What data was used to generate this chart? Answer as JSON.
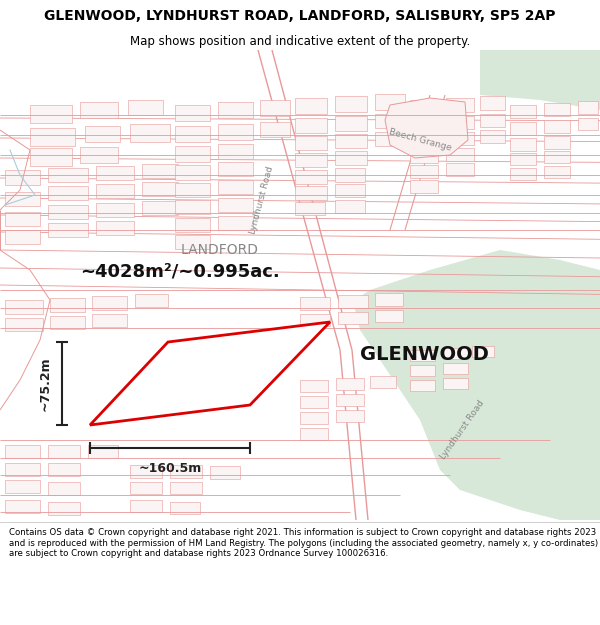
{
  "title": "GLENWOOD, LYNDHURST ROAD, LANDFORD, SALISBURY, SP5 2AP",
  "subtitle": "Map shows position and indicative extent of the property.",
  "footer": "Contains OS data © Crown copyright and database right 2021. This information is subject to Crown copyright and database rights 2023 and is reproduced with the permission of HM Land Registry. The polygons (including the associated geometry, namely x, y co-ordinates) are subject to Crown copyright and database rights 2023 Ordnance Survey 100026316.",
  "property_label": "GLENWOOD",
  "area_label": "~4028m²/~0.995ac.",
  "width_label": "~160.5m",
  "height_label": "~75.2m",
  "landford_label": "LANDFORD",
  "lyndhurst_road_label": "Lyndhurst Road",
  "beech_grange_label": "Beech Grange",
  "map_bg": "#ffffff",
  "road_color": "#f5c0c0",
  "highlight_color": "#dd0000",
  "green_area_color": "#d8e8d8",
  "line_color": "#e89898",
  "dim_color": "#222222",
  "title_fontsize": 10,
  "subtitle_fontsize": 8.5,
  "footer_fontsize": 6.2,
  "label_fontsize": 14,
  "area_fontsize": 13,
  "landford_fontsize": 10,
  "dim_fontsize": 9,
  "road_label_fontsize": 6.5
}
